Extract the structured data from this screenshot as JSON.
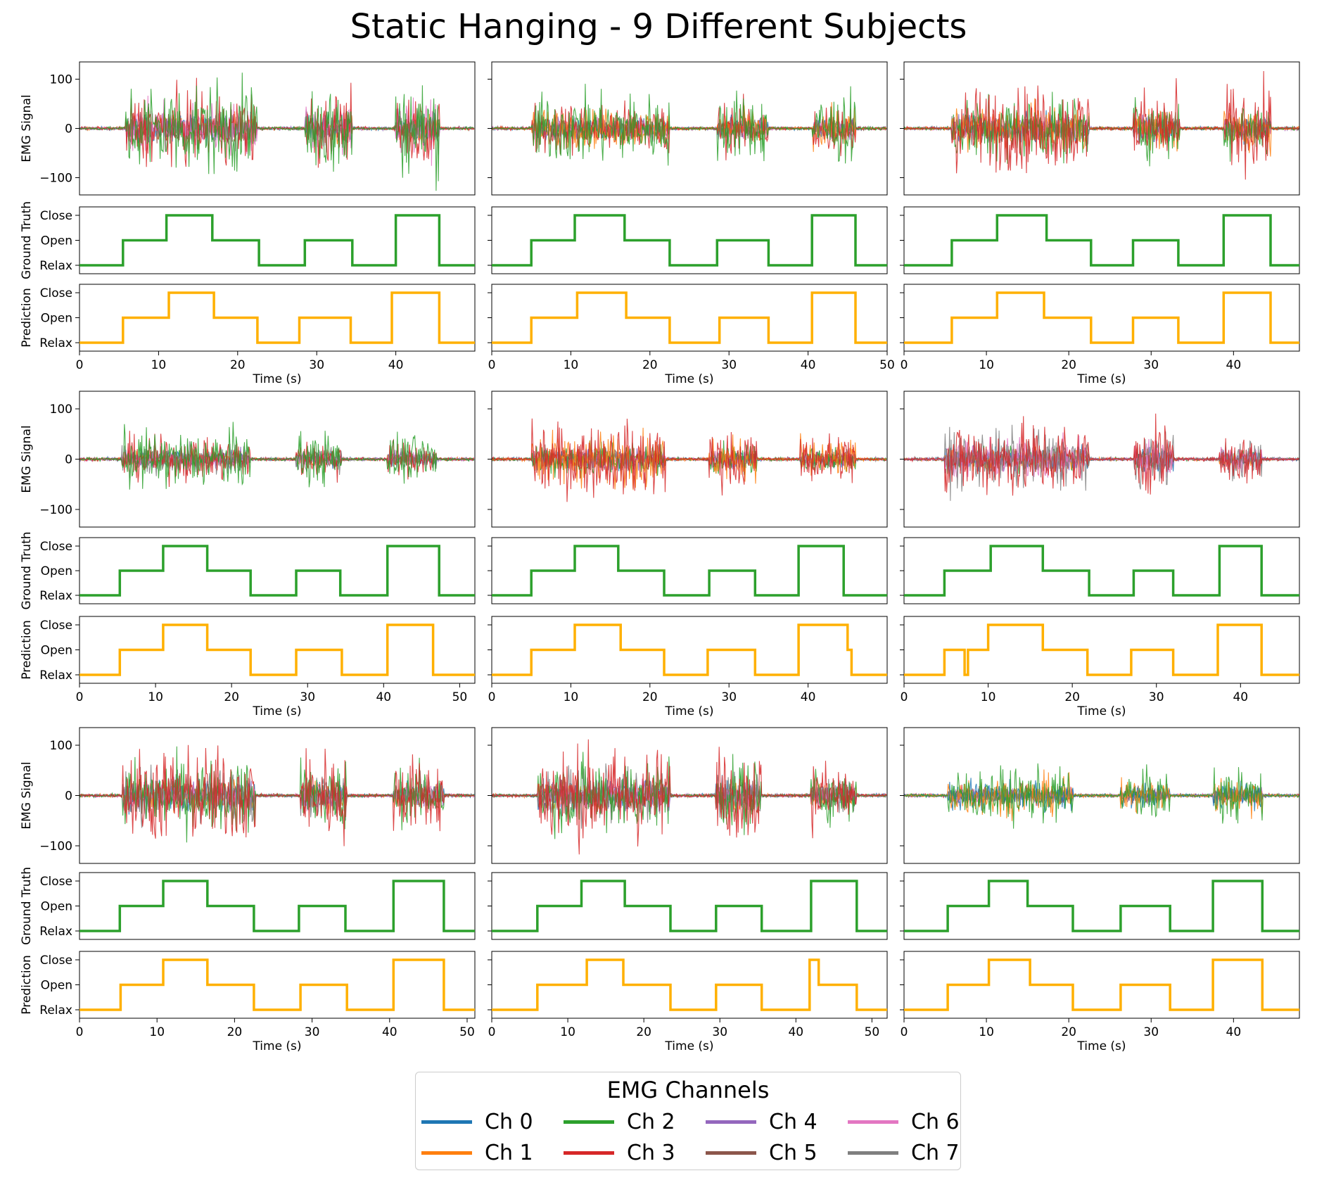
{
  "chart_data": {
    "type": "line",
    "title": "Static Hanging - 9 Different Subjects",
    "channel_colors": [
      "#1f77b4",
      "#ff7f0e",
      "#2ca02c",
      "#d62728",
      "#9467bd",
      "#8c564b",
      "#e377c2",
      "#7f7f7f"
    ],
    "ground_truth_color": "#2ca02c",
    "prediction_color": "#ffb000",
    "emg_ylabel": "EMG Signal",
    "gt_ylabel": "Ground Truth",
    "pred_ylabel": "Prediction",
    "xlabel": "Time (s)",
    "emg_ylim": [
      -135,
      135
    ],
    "emg_yticks": [
      100,
      0,
      -100
    ],
    "class_ticks": [
      "Relax",
      "Open",
      "Close"
    ],
    "legend": {
      "title": "EMG Channels",
      "entries": [
        "Ch 0",
        "Ch 1",
        "Ch 2",
        "Ch 3",
        "Ch 4",
        "Ch 5",
        "Ch 6",
        "Ch 7"
      ]
    },
    "subjects": [
      {
        "xlim": [
          0,
          50
        ],
        "xticks": [
          0,
          10,
          20,
          30,
          40
        ],
        "dominant_channels": [
          2,
          3,
          6
        ],
        "bursts": [
          [
            5.8,
            22.5,
            1.0
          ],
          [
            28.5,
            34.5,
            1.0
          ],
          [
            40,
            45.5,
            1.0
          ]
        ],
        "ground_truth": [
          [
            0,
            0
          ],
          [
            5.5,
            1
          ],
          [
            11,
            2
          ],
          [
            16.8,
            1
          ],
          [
            22.7,
            0
          ],
          [
            28.5,
            1
          ],
          [
            34.5,
            0
          ],
          [
            40,
            2
          ],
          [
            45.5,
            0
          ]
        ],
        "prediction": [
          [
            0,
            0
          ],
          [
            5.5,
            1
          ],
          [
            11.3,
            2
          ],
          [
            17,
            1
          ],
          [
            22.5,
            0
          ],
          [
            27.8,
            1
          ],
          [
            34.3,
            0
          ],
          [
            39.5,
            2
          ],
          [
            45.5,
            0
          ]
        ]
      },
      {
        "xlim": [
          0,
          50
        ],
        "xticks": [
          0,
          10,
          20,
          30,
          40,
          50
        ],
        "dominant_channels": [
          2,
          3,
          1
        ],
        "bursts": [
          [
            5,
            22.5,
            0.75
          ],
          [
            28.5,
            35,
            0.75
          ],
          [
            40.5,
            46,
            0.75
          ]
        ],
        "ground_truth": [
          [
            0,
            0
          ],
          [
            5,
            1
          ],
          [
            10.5,
            2
          ],
          [
            16.8,
            1
          ],
          [
            22.5,
            0
          ],
          [
            28.5,
            1
          ],
          [
            35,
            0
          ],
          [
            40.5,
            2
          ],
          [
            46,
            0
          ]
        ],
        "prediction": [
          [
            0,
            0
          ],
          [
            5,
            1
          ],
          [
            10.8,
            2
          ],
          [
            17,
            1
          ],
          [
            22.5,
            0
          ],
          [
            28.8,
            1
          ],
          [
            35,
            0
          ],
          [
            40.5,
            2
          ],
          [
            46,
            0
          ]
        ]
      },
      {
        "xlim": [
          0,
          48
        ],
        "xticks": [
          0,
          10,
          20,
          30,
          40
        ],
        "dominant_channels": [
          3,
          2,
          1
        ],
        "bursts": [
          [
            5.8,
            22.5,
            0.9
          ],
          [
            27.8,
            33.5,
            0.9
          ],
          [
            38.8,
            44.5,
            0.9
          ]
        ],
        "ground_truth": [
          [
            0,
            0
          ],
          [
            5.8,
            1
          ],
          [
            11.3,
            2
          ],
          [
            17.3,
            1
          ],
          [
            22.7,
            0
          ],
          [
            27.8,
            1
          ],
          [
            33.3,
            0
          ],
          [
            38.8,
            2
          ],
          [
            44.5,
            0
          ]
        ],
        "prediction": [
          [
            0,
            0
          ],
          [
            5.8,
            1
          ],
          [
            11.3,
            2
          ],
          [
            17,
            1
          ],
          [
            22.7,
            0
          ],
          [
            27.8,
            1
          ],
          [
            33.3,
            0
          ],
          [
            38.8,
            2
          ],
          [
            44.5,
            0
          ]
        ]
      },
      {
        "xlim": [
          0,
          52
        ],
        "xticks": [
          0,
          10,
          20,
          30,
          40,
          50
        ],
        "dominant_channels": [
          2,
          3,
          7
        ],
        "bursts": [
          [
            5.5,
            22.5,
            0.6
          ],
          [
            28.5,
            34.5,
            0.55
          ],
          [
            40.5,
            47,
            0.5
          ]
        ],
        "ground_truth": [
          [
            0,
            0
          ],
          [
            5.3,
            1
          ],
          [
            11,
            2
          ],
          [
            16.8,
            1
          ],
          [
            22.5,
            0
          ],
          [
            28.5,
            1
          ],
          [
            34.3,
            0
          ],
          [
            40.5,
            2
          ],
          [
            47.3,
            0
          ]
        ],
        "prediction": [
          [
            0,
            0
          ],
          [
            5.3,
            1
          ],
          [
            11,
            2
          ],
          [
            16.8,
            1
          ],
          [
            22.5,
            0
          ],
          [
            28.5,
            1
          ],
          [
            34.5,
            0
          ],
          [
            40.5,
            2
          ],
          [
            46.5,
            0
          ]
        ]
      },
      {
        "xlim": [
          0,
          50
        ],
        "xticks": [
          0,
          10,
          20,
          30,
          40
        ],
        "dominant_channels": [
          3,
          1,
          2
        ],
        "bursts": [
          [
            5,
            22,
            0.75
          ],
          [
            27.5,
            33.5,
            0.6
          ],
          [
            39,
            46,
            0.55
          ]
        ],
        "ground_truth": [
          [
            0,
            0
          ],
          [
            5,
            1
          ],
          [
            10.5,
            2
          ],
          [
            16,
            1
          ],
          [
            21.8,
            0
          ],
          [
            27.5,
            1
          ],
          [
            33.3,
            0
          ],
          [
            38.8,
            2
          ],
          [
            44.5,
            0
          ]
        ],
        "prediction": [
          [
            0,
            0
          ],
          [
            5,
            1
          ],
          [
            10.5,
            2
          ],
          [
            16.3,
            1
          ],
          [
            21.8,
            0
          ],
          [
            27.3,
            1
          ],
          [
            33.3,
            0
          ],
          [
            38.8,
            2
          ],
          [
            45,
            1
          ],
          [
            45.5,
            0
          ]
        ]
      },
      {
        "xlim": [
          0,
          47
        ],
        "xticks": [
          0,
          10,
          20,
          30,
          40
        ],
        "dominant_channels": [
          3,
          7,
          6
        ],
        "bursts": [
          [
            4.8,
            22,
            0.8
          ],
          [
            27.3,
            32,
            0.8
          ],
          [
            37.5,
            42.5,
            0.55
          ]
        ],
        "ground_truth": [
          [
            0,
            0
          ],
          [
            4.8,
            1
          ],
          [
            10.3,
            2
          ],
          [
            16.5,
            1
          ],
          [
            22,
            0
          ],
          [
            27.3,
            1
          ],
          [
            32,
            0
          ],
          [
            37.5,
            2
          ],
          [
            42.5,
            0
          ]
        ],
        "prediction": [
          [
            0,
            0
          ],
          [
            4.8,
            1
          ],
          [
            7.2,
            0
          ],
          [
            7.6,
            1
          ],
          [
            10,
            2
          ],
          [
            16.5,
            1
          ],
          [
            21.8,
            0
          ],
          [
            27,
            1
          ],
          [
            32,
            0
          ],
          [
            37.3,
            2
          ],
          [
            42.5,
            0
          ]
        ]
      },
      {
        "xlim": [
          0,
          51
        ],
        "xticks": [
          0,
          10,
          20,
          30,
          40,
          50
        ],
        "dominant_channels": [
          3,
          2,
          7
        ],
        "bursts": [
          [
            5.5,
            22.7,
            1.0
          ],
          [
            28.5,
            34.5,
            1.0
          ],
          [
            40.5,
            47,
            0.8
          ]
        ],
        "ground_truth": [
          [
            0,
            0
          ],
          [
            5.2,
            1
          ],
          [
            10.8,
            2
          ],
          [
            16.5,
            1
          ],
          [
            22.5,
            0
          ],
          [
            28.3,
            1
          ],
          [
            34.3,
            0
          ],
          [
            40.5,
            2
          ],
          [
            47,
            0
          ]
        ],
        "prediction": [
          [
            0,
            0
          ],
          [
            5.3,
            1
          ],
          [
            10.8,
            2
          ],
          [
            16.5,
            1
          ],
          [
            22.5,
            0
          ],
          [
            28.5,
            1
          ],
          [
            34.5,
            0
          ],
          [
            40.5,
            2
          ],
          [
            47,
            0
          ]
        ]
      },
      {
        "xlim": [
          0,
          52
        ],
        "xticks": [
          0,
          10,
          20,
          30,
          40,
          50
        ],
        "dominant_channels": [
          3,
          2,
          7
        ],
        "bursts": [
          [
            6,
            23.5,
            1.0
          ],
          [
            29.5,
            35.5,
            1.0
          ],
          [
            42,
            48,
            0.75
          ]
        ],
        "ground_truth": [
          [
            0,
            0
          ],
          [
            6,
            1
          ],
          [
            11.8,
            2
          ],
          [
            17.5,
            1
          ],
          [
            23.5,
            0
          ],
          [
            29.5,
            1
          ],
          [
            35.5,
            0
          ],
          [
            42,
            2
          ],
          [
            48,
            0
          ]
        ],
        "prediction": [
          [
            0,
            0
          ],
          [
            6,
            1
          ],
          [
            12.5,
            2
          ],
          [
            17.3,
            1
          ],
          [
            23.5,
            0
          ],
          [
            29.5,
            1
          ],
          [
            35.5,
            0
          ],
          [
            41.8,
            2
          ],
          [
            43,
            1
          ],
          [
            48,
            0
          ]
        ]
      },
      {
        "xlim": [
          0,
          48
        ],
        "xticks": [
          0,
          10,
          20,
          30,
          40
        ],
        "dominant_channels": [
          2,
          1,
          0
        ],
        "bursts": [
          [
            5.3,
            20.5,
            0.55
          ],
          [
            26.3,
            32.3,
            0.5
          ],
          [
            37.5,
            43.5,
            0.55
          ]
        ],
        "ground_truth": [
          [
            0,
            0
          ],
          [
            5.3,
            1
          ],
          [
            10.3,
            2
          ],
          [
            15,
            1
          ],
          [
            20.5,
            0
          ],
          [
            26.3,
            1
          ],
          [
            32.3,
            0
          ],
          [
            37.5,
            2
          ],
          [
            43.5,
            0
          ]
        ],
        "prediction": [
          [
            0,
            0
          ],
          [
            5.3,
            1
          ],
          [
            10.3,
            2
          ],
          [
            15.3,
            1
          ],
          [
            20.5,
            0
          ],
          [
            26.3,
            1
          ],
          [
            32.3,
            0
          ],
          [
            37.5,
            2
          ],
          [
            43.5,
            0
          ]
        ]
      }
    ]
  }
}
